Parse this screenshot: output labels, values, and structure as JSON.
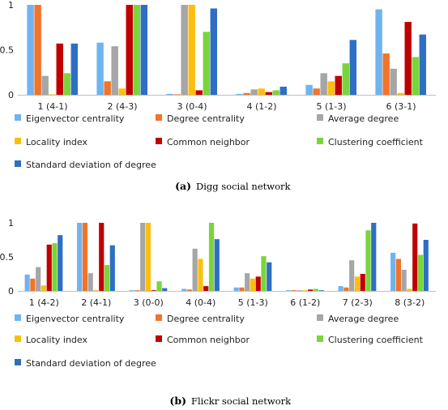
{
  "series_colors": [
    "#6fb4f0",
    "#f2732a",
    "#a6a6a6",
    "#fcbf10",
    "#c00000",
    "#7bd53a",
    "#2e6fc4"
  ],
  "chart_data": [
    {
      "type": "bar",
      "caption_label": "(a)",
      "caption_text": "Digg social network",
      "categories": [
        "1 (4-1)",
        "2 (4-3)",
        "3 (0-4)",
        "4 (1-2)",
        "5 (1-3)",
        "6 (3-1)"
      ],
      "yticks": [
        "0",
        "0.5",
        "1"
      ],
      "ylim": [
        0,
        1
      ],
      "grid": false,
      "legend_position": "bottom",
      "series": [
        {
          "name": "Eigenvector centrality",
          "values": [
            1.0,
            0.58,
            0.01,
            0.01,
            0.11,
            0.95
          ]
        },
        {
          "name": "Degree centrality",
          "values": [
            1.0,
            0.15,
            0.0,
            0.02,
            0.07,
            0.46
          ]
        },
        {
          "name": "Average degree",
          "values": [
            0.21,
            0.54,
            1.0,
            0.06,
            0.24,
            0.29
          ]
        },
        {
          "name": "Locality index",
          "values": [
            0.0,
            0.07,
            1.0,
            0.07,
            0.15,
            0.02
          ]
        },
        {
          "name": "Common neighbor",
          "values": [
            0.57,
            1.0,
            0.05,
            0.03,
            0.21,
            0.81
          ]
        },
        {
          "name": "Clustering coefficient",
          "values": [
            0.24,
            1.0,
            0.7,
            0.05,
            0.35,
            0.42
          ]
        },
        {
          "name": "Standard deviation of degree",
          "values": [
            0.57,
            1.0,
            0.96,
            0.09,
            0.61,
            0.67
          ]
        }
      ]
    },
    {
      "type": "bar",
      "caption_label": "(b)",
      "caption_text": "Flickr social network",
      "categories": [
        "1 (4-2)",
        "2 (4-1)",
        "3 (0-0)",
        "4 (0-4)",
        "5 (1-3)",
        "6 (1-2)",
        "7 (2-3)",
        "8 (3-2)"
      ],
      "yticks": [
        "0",
        "0.5",
        "1"
      ],
      "ylim": [
        0,
        1
      ],
      "grid": false,
      "legend_position": "bottom",
      "series": [
        {
          "name": "Eigenvector centrality",
          "values": [
            0.24,
            1.0,
            0.01,
            0.03,
            0.05,
            0.01,
            0.07,
            0.56
          ]
        },
        {
          "name": "Degree centrality",
          "values": [
            0.18,
            1.0,
            0.01,
            0.02,
            0.05,
            0.01,
            0.05,
            0.47
          ]
        },
        {
          "name": "Average degree",
          "values": [
            0.35,
            0.26,
            1.0,
            0.62,
            0.26,
            0.01,
            0.45,
            0.31
          ]
        },
        {
          "name": "Locality index",
          "values": [
            0.08,
            0.01,
            1.0,
            0.47,
            0.18,
            0.01,
            0.21,
            0.03
          ]
        },
        {
          "name": "Common neighbor",
          "values": [
            0.68,
            1.0,
            0.01,
            0.07,
            0.21,
            0.02,
            0.25,
            0.99
          ]
        },
        {
          "name": "Clustering coefficient",
          "values": [
            0.7,
            0.38,
            0.14,
            1.0,
            0.51,
            0.03,
            0.89,
            0.53
          ]
        },
        {
          "name": "Standard deviation of degree",
          "values": [
            0.82,
            0.67,
            0.04,
            0.76,
            0.42,
            0.01,
            1.0,
            0.75
          ]
        }
      ]
    }
  ]
}
